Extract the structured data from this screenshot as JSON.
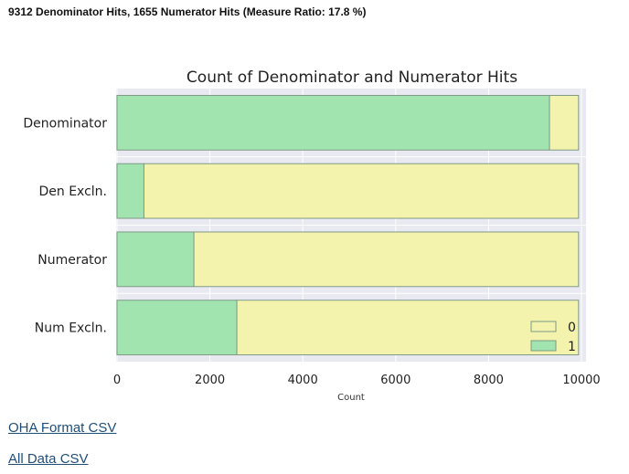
{
  "summary": "9312 Denominator Hits, 1655 Numerator Hits (Measure Ratio: 17.8 %)",
  "links": {
    "oha_csv": "OHA Format CSV",
    "all_csv": "All Data CSV"
  },
  "chart_data": {
    "type": "bar",
    "orientation": "horizontal",
    "stacked": true,
    "title": "Count of Denominator and Numerator Hits",
    "xlabel": "Count",
    "ylabel": "",
    "categories": [
      "Denominator",
      "Den Excln.",
      "Numerator",
      "Num Excln."
    ],
    "series": [
      {
        "name": "1",
        "color": "#a2e4b0",
        "values": [
          9312,
          580,
          1655,
          2580
        ]
      },
      {
        "name": "0",
        "color": "#f3f3ae",
        "values": [
          625,
          9357,
          8282,
          7357
        ]
      }
    ],
    "xlim": [
      0,
      10000
    ],
    "xticks": [
      "0",
      "2000",
      "4000",
      "6000",
      "8000",
      "10000"
    ],
    "grid": true,
    "legend_position": "lower-right",
    "legend_order": [
      "0",
      "1"
    ]
  }
}
